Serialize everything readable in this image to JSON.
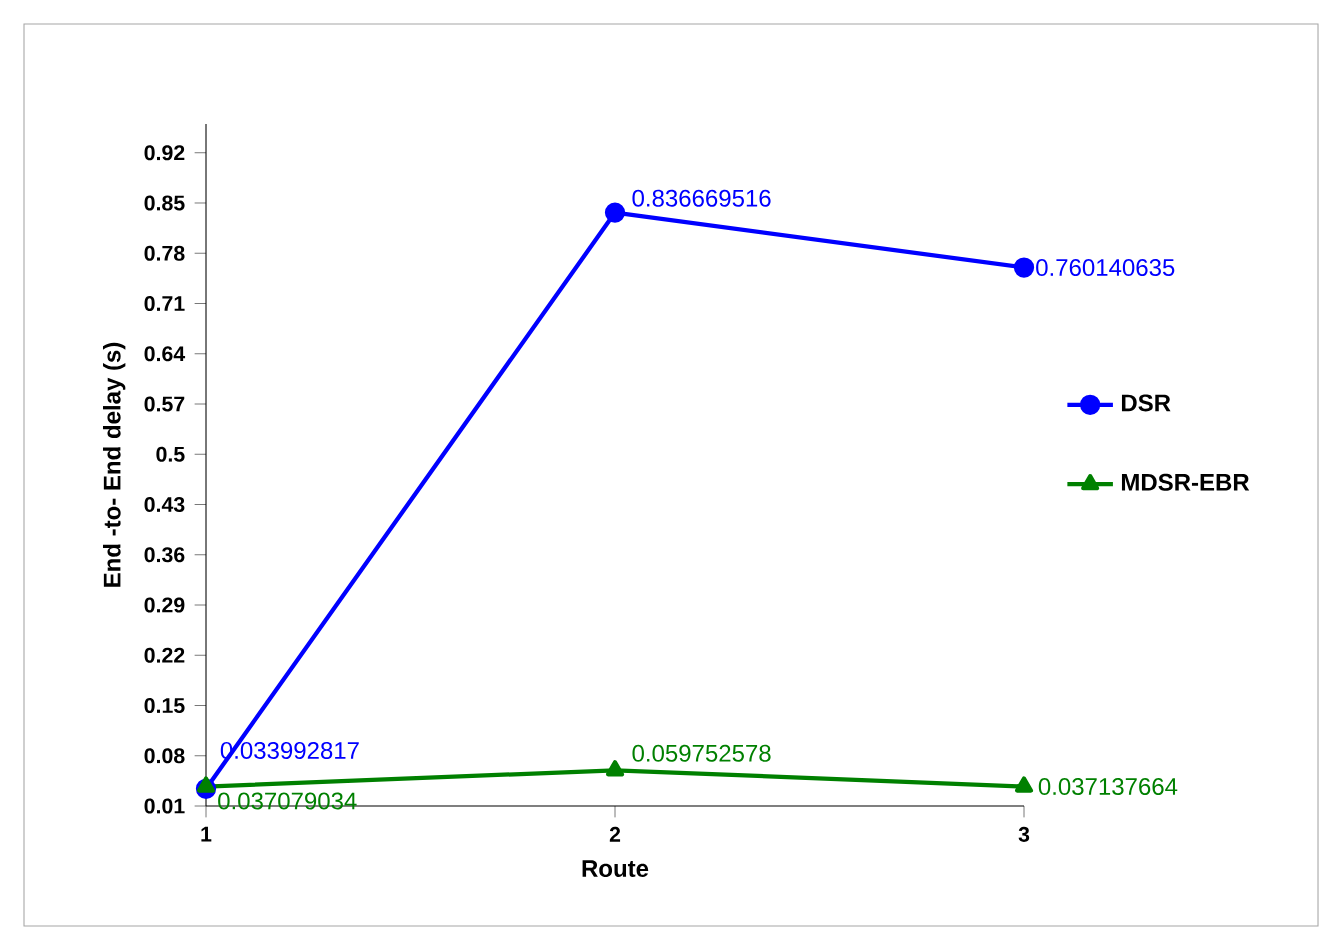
{
  "chart_data": {
    "type": "line",
    "xlabel": "Route",
    "ylabel": "End -to- End delay (s)",
    "x": [
      1,
      2,
      3
    ],
    "xlim": [
      1,
      3
    ],
    "xticks": [
      1,
      2,
      3
    ],
    "ylim": [
      0.01,
      0.96
    ],
    "yticks": [
      0.01,
      0.08,
      0.15,
      0.22,
      0.29,
      0.36,
      0.43,
      0.5,
      0.57,
      0.64,
      0.71,
      0.78,
      0.85,
      0.92
    ],
    "data_labels": true,
    "legend": "right",
    "grid": false,
    "series": [
      {
        "name": "DSR",
        "color": "#0000ff",
        "marker": "circle",
        "values": [
          0.033992817,
          0.836669516,
          0.760140635
        ]
      },
      {
        "name": "MDSR-EBR",
        "color": "#008000",
        "marker": "triangle",
        "values": [
          0.037079034,
          0.059752578,
          0.037137664
        ]
      }
    ]
  }
}
